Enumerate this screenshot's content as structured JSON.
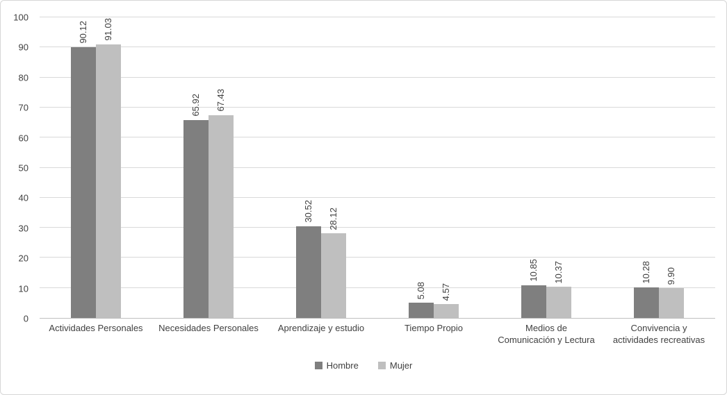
{
  "chart_data": {
    "type": "bar",
    "title": "",
    "xlabel": "",
    "ylabel": "",
    "categories": [
      "Actividades Personales",
      "Necesidades Personales",
      "Aprendizaje y estudio",
      "Tiempo Propio",
      "Medios de\nComunicación y Lectura",
      "Convivencia y\nactividades recreativas"
    ],
    "series": [
      {
        "name": "Hombre",
        "color": "#7f7f7f",
        "values": [
          90.12,
          65.92,
          30.52,
          5.08,
          10.85,
          10.28
        ],
        "labels": [
          "90.12",
          "65.92",
          "30.52",
          "5.08",
          "10.85",
          "10.28"
        ]
      },
      {
        "name": "Mujer",
        "color": "#bfbfbf",
        "values": [
          91.03,
          67.43,
          28.12,
          4.57,
          10.37,
          9.9
        ],
        "labels": [
          "91.03",
          "67.43",
          "28.12",
          "4.57",
          "10.37",
          "9.90"
        ]
      }
    ],
    "ylim": [
      0,
      100
    ],
    "ytick_step": 10,
    "yticks": [
      0,
      10,
      20,
      30,
      40,
      50,
      60,
      70,
      80,
      90,
      100
    ],
    "grid": true,
    "legend_position": "bottom",
    "data_labels_rotation": 90
  },
  "style": {
    "grid_color": "#d9d9d9",
    "axis_color": "#bfbfbf",
    "text_color": "#404040",
    "background": "#ffffff",
    "border_color": "#d6d6d6"
  }
}
